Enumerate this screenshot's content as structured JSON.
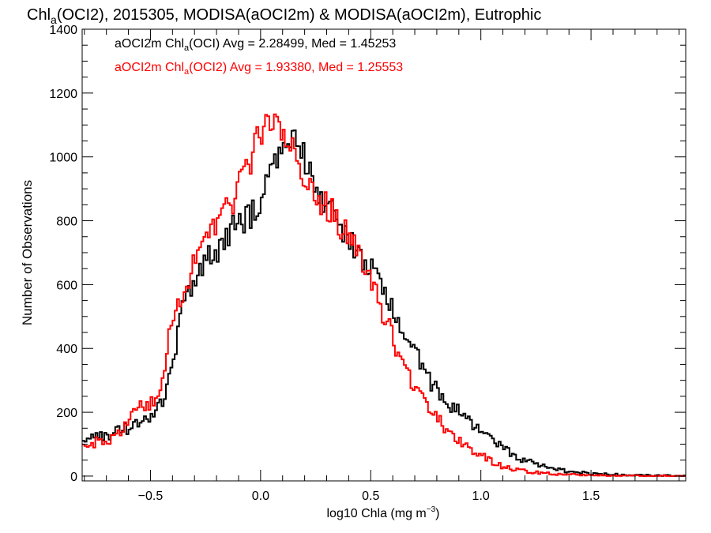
{
  "chart_data": {
    "type": "line",
    "title_parts": {
      "pre": "Chl",
      "sub": "a",
      "post": "(OCI2), 2015305, MODISA(aOCI2m) & MODISA(aOCI2m), Eutrophic"
    },
    "xlabel_parts": {
      "pre": "log10 Chla (mg m",
      "sup": "−3",
      "post": ")"
    },
    "ylabel": "Number of Observations",
    "xlim": [
      -0.81,
      1.93
    ],
    "ylim": [
      -15,
      1400
    ],
    "x_ticks": [
      "−0.5",
      "0.0",
      "0.5",
      "1.0",
      "1.5"
    ],
    "x_tick_values": [
      -0.5,
      0,
      0.5,
      1.0,
      1.5
    ],
    "y_ticks": [
      "0",
      "200",
      "400",
      "600",
      "800",
      "1000",
      "1200",
      "1400"
    ],
    "y_tick_values": [
      0,
      200,
      400,
      600,
      800,
      1000,
      1200,
      1400
    ],
    "bin_width": 0.01,
    "legend_placement": "top-left",
    "series": [
      {
        "label_parts": {
          "pre": "aOCI2m Chl",
          "sub": "a",
          "post": "(OCI) Avg = 2.28499, Med = 1.45253"
        },
        "color": "#000000",
        "keypoints": [
          [
            -0.81,
            120
          ],
          [
            -0.78,
            130
          ],
          [
            -0.75,
            120
          ],
          [
            -0.7,
            130
          ],
          [
            -0.65,
            138
          ],
          [
            -0.6,
            152
          ],
          [
            -0.55,
            168
          ],
          [
            -0.5,
            185
          ],
          [
            -0.45,
            230
          ],
          [
            -0.4,
            340
          ],
          [
            -0.36,
            510
          ],
          [
            -0.33,
            560
          ],
          [
            -0.3,
            580
          ],
          [
            -0.27,
            640
          ],
          [
            -0.24,
            690
          ],
          [
            -0.2,
            700
          ],
          [
            -0.15,
            760
          ],
          [
            -0.1,
            790
          ],
          [
            -0.05,
            815
          ],
          [
            0.0,
            850
          ],
          [
            0.03,
            920
          ],
          [
            0.06,
            990
          ],
          [
            0.1,
            1030
          ],
          [
            0.13,
            1050
          ],
          [
            0.16,
            1060
          ],
          [
            0.19,
            1010
          ],
          [
            0.22,
            960
          ],
          [
            0.26,
            880
          ],
          [
            0.3,
            850
          ],
          [
            0.35,
            790
          ],
          [
            0.4,
            740
          ],
          [
            0.45,
            685
          ],
          [
            0.5,
            645
          ],
          [
            0.55,
            590
          ],
          [
            0.58,
            560
          ],
          [
            0.62,
            500
          ],
          [
            0.66,
            440
          ],
          [
            0.7,
            395
          ],
          [
            0.74,
            330
          ],
          [
            0.78,
            285
          ],
          [
            0.82,
            255
          ],
          [
            0.86,
            225
          ],
          [
            0.9,
            200
          ],
          [
            0.95,
            165
          ],
          [
            1.0,
            140
          ],
          [
            1.05,
            110
          ],
          [
            1.1,
            85
          ],
          [
            1.15,
            65
          ],
          [
            1.2,
            50
          ],
          [
            1.25,
            37
          ],
          [
            1.3,
            28
          ],
          [
            1.35,
            20
          ],
          [
            1.4,
            15
          ],
          [
            1.45,
            11
          ],
          [
            1.5,
            8
          ],
          [
            1.6,
            5
          ],
          [
            1.7,
            3
          ],
          [
            1.8,
            1
          ],
          [
            1.93,
            1
          ]
        ]
      },
      {
        "label_parts": {
          "pre": "aOCI2m Chl",
          "sub": "a",
          "post": "(OCI2) Avg = 1.93380, Med = 1.25553"
        },
        "color": "#ff0000",
        "keypoints": [
          [
            -0.81,
            90
          ],
          [
            -0.78,
            108
          ],
          [
            -0.75,
            105
          ],
          [
            -0.7,
            112
          ],
          [
            -0.66,
            118
          ],
          [
            -0.62,
            145
          ],
          [
            -0.59,
            175
          ],
          [
            -0.56,
            235
          ],
          [
            -0.53,
            225
          ],
          [
            -0.5,
            220
          ],
          [
            -0.47,
            245
          ],
          [
            -0.44,
            330
          ],
          [
            -0.4,
            490
          ],
          [
            -0.36,
            575
          ],
          [
            -0.33,
            620
          ],
          [
            -0.3,
            660
          ],
          [
            -0.26,
            720
          ],
          [
            -0.22,
            770
          ],
          [
            -0.18,
            820
          ],
          [
            -0.14,
            850
          ],
          [
            -0.1,
            900
          ],
          [
            -0.06,
            960
          ],
          [
            -0.02,
            1040
          ],
          [
            0.01,
            1090
          ],
          [
            0.04,
            1130
          ],
          [
            0.07,
            1110
          ],
          [
            0.1,
            1080
          ],
          [
            0.14,
            1040
          ],
          [
            0.18,
            980
          ],
          [
            0.22,
            900
          ],
          [
            0.26,
            860
          ],
          [
            0.3,
            845
          ],
          [
            0.34,
            810
          ],
          [
            0.38,
            765
          ],
          [
            0.42,
            720
          ],
          [
            0.46,
            680
          ],
          [
            0.5,
            600
          ],
          [
            0.54,
            545
          ],
          [
            0.58,
            470
          ],
          [
            0.62,
            400
          ],
          [
            0.66,
            330
          ],
          [
            0.7,
            275
          ],
          [
            0.74,
            230
          ],
          [
            0.78,
            200
          ],
          [
            0.82,
            165
          ],
          [
            0.86,
            135
          ],
          [
            0.9,
            110
          ],
          [
            0.95,
            85
          ],
          [
            1.0,
            65
          ],
          [
            1.05,
            45
          ],
          [
            1.1,
            30
          ],
          [
            1.15,
            22
          ],
          [
            1.2,
            16
          ],
          [
            1.3,
            9
          ],
          [
            1.4,
            5
          ],
          [
            1.5,
            3
          ],
          [
            1.7,
            1
          ],
          [
            1.93,
            0
          ]
        ]
      }
    ]
  }
}
